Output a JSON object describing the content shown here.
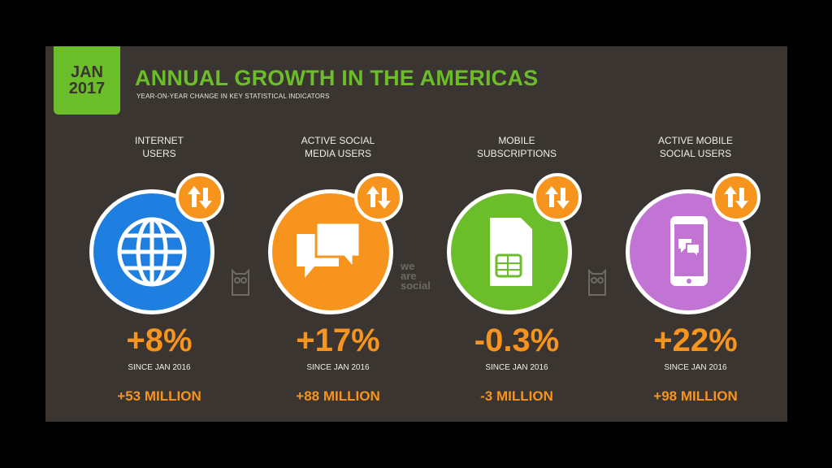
{
  "badge": {
    "month": "JAN",
    "year": "2017"
  },
  "title": "ANNUAL GROWTH IN THE AMERICAS",
  "subtitle": "YEAR-ON-YEAR CHANGE IN KEY STATISTICAL INDICATORS",
  "watermark": [
    "we",
    "are",
    "social"
  ],
  "colors": {
    "background": "#3a3530",
    "green": "#6bbd2a",
    "orange": "#f7941d",
    "blue": "#1e7fe0",
    "purple": "#c174d3"
  },
  "cards": [
    {
      "label_line1": "INTERNET",
      "label_line2": "USERS",
      "icon": "globe-icon",
      "color": "#1e7fe0",
      "percent": "+8%",
      "since": "SINCE JAN 2016",
      "absolute": "+53 MILLION"
    },
    {
      "label_line1": "ACTIVE SOCIAL",
      "label_line2": "MEDIA USERS",
      "icon": "speech-bubbles-icon",
      "color": "#f7941d",
      "percent": "+17%",
      "since": "SINCE JAN 2016",
      "absolute": "+88 MILLION"
    },
    {
      "label_line1": "MOBILE",
      "label_line2": "SUBSCRIPTIONS",
      "icon": "sim-card-icon",
      "color": "#6bbd2a",
      "percent": "-0.3%",
      "since": "SINCE JAN 2016",
      "absolute": "-3 MILLION"
    },
    {
      "label_line1": "ACTIVE MOBILE",
      "label_line2": "SOCIAL USERS",
      "icon": "mobile-chat-icon",
      "color": "#c174d3",
      "percent": "+22%",
      "since": "SINCE JAN 2016",
      "absolute": "+98 MILLION"
    }
  ]
}
